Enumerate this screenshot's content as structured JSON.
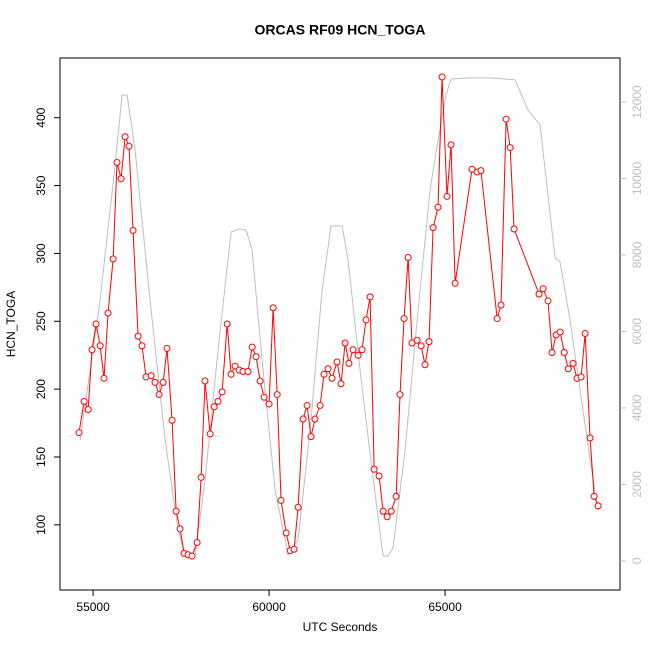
{
  "chart_data": {
    "type": "line",
    "title": "ORCAS RF09 HCN_TOGA",
    "xlabel": "UTC Seconds",
    "ylabel": "HCN_TOGA",
    "xlim": [
      54060,
      69970
    ],
    "xticks": [
      55000,
      60000,
      65000
    ],
    "ylim": [
      52,
      444
    ],
    "yticks": [
      100,
      150,
      200,
      250,
      300,
      350,
      400
    ],
    "y2lim": [
      -760,
      13150
    ],
    "y2ticks": [
      0,
      2000,
      4000,
      6000,
      8000,
      10000,
      12000
    ],
    "y2color": "#bebebe",
    "series": [
      {
        "color": "#bebebe",
        "axis": "y2",
        "markers": false,
        "x": [
          54631,
          55199,
          55625,
          55824,
          55966,
          56193,
          56619,
          57046,
          57415,
          57614,
          57898,
          58182,
          58551,
          58920,
          59176,
          59347,
          59517,
          59801,
          60170,
          60540,
          60824,
          61165,
          61506,
          61761,
          62074,
          62244,
          62585,
          62926,
          63239,
          63381,
          63523,
          63864,
          64233,
          64574,
          64801,
          65028,
          65170,
          65710,
          66278,
          66989,
          67358,
          67699,
          68125,
          68267,
          68551,
          68835,
          69120,
          69347
        ],
        "values": [
          3160,
          6820,
          10350,
          12180,
          12180,
          10750,
          6820,
          3160,
          810,
          160,
          160,
          2120,
          5520,
          8600,
          8680,
          8650,
          8130,
          5250,
          1860,
          160,
          550,
          3420,
          7080,
          8760,
          8760,
          7870,
          4990,
          2380,
          130,
          130,
          340,
          2900,
          6560,
          9700,
          11010,
          12180,
          12600,
          12630,
          12630,
          12580,
          11790,
          11400,
          7920,
          7820,
          6300,
          4470,
          2640,
          1330
        ]
      },
      {
        "color": "#ff0000",
        "axis": "y",
        "markers": true,
        "x": [
          54600,
          54745,
          54860,
          54970,
          55085,
          55200,
          55310,
          55425,
          55570,
          55680,
          55795,
          55910,
          56020,
          56135,
          56280,
          56390,
          56505,
          56650,
          56760,
          56875,
          56990,
          57100,
          57245,
          57360,
          57470,
          57585,
          57700,
          57810,
          57955,
          58070,
          58180,
          58325,
          58440,
          58550,
          58665,
          58810,
          58920,
          59035,
          59150,
          59260,
          59400,
          59520,
          59630,
          59745,
          59860,
          60000,
          60115,
          60230,
          60340,
          60485,
          60600,
          60710,
          60825,
          60965,
          61080,
          61190,
          61305,
          61450,
          61560,
          61675,
          61790,
          61930,
          62045,
          62160,
          62270,
          62385,
          62530,
          62640,
          62755,
          62870,
          62985,
          63125,
          63240,
          63355,
          63470,
          63610,
          63720,
          63835,
          63950,
          64060,
          64205,
          64320,
          64430,
          64545,
          64660,
          64800,
          64915,
          65055,
          65170,
          65285,
          65765,
          65910,
          66020,
          66480,
          66590,
          66735,
          66850,
          66960,
          67670,
          67785,
          67925,
          68040,
          68155,
          68270,
          68385,
          68500,
          68635,
          68750,
          68865,
          68980,
          69120,
          69235,
          69350
        ],
        "values": [
          168,
          191,
          185,
          229,
          248,
          232,
          208,
          256,
          296,
          367,
          355,
          386,
          379,
          317,
          239,
          232,
          209,
          210,
          205,
          196,
          205,
          230,
          177,
          110,
          97,
          79,
          78,
          77,
          87,
          135,
          206,
          167,
          187,
          191,
          198,
          248,
          211,
          217,
          214,
          213,
          213,
          231,
          224,
          206,
          194,
          189,
          260,
          196,
          118,
          94,
          81,
          82,
          113,
          178,
          188,
          165,
          178,
          188,
          211,
          215,
          208,
          220,
          204,
          234,
          219,
          229,
          225,
          229,
          251,
          268,
          141,
          136,
          110,
          106,
          110,
          121,
          196,
          252,
          297,
          234,
          236,
          232,
          218,
          235,
          319,
          334,
          430,
          342,
          380,
          278,
          362,
          360,
          361,
          252,
          262,
          399,
          378,
          318,
          270,
          274,
          265,
          227,
          240,
          242,
          227,
          215,
          219,
          208,
          209,
          241,
          164,
          121,
          114
        ]
      }
    ]
  }
}
